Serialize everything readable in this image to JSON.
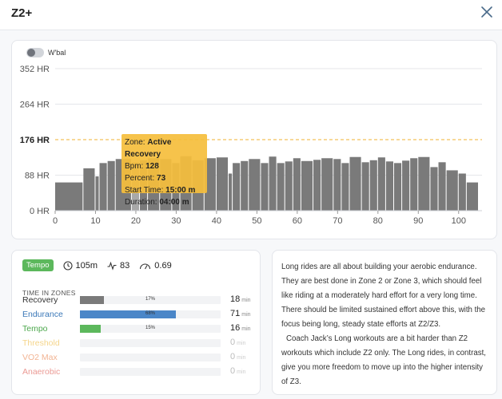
{
  "header": {
    "title": "Z2+"
  },
  "chart": {
    "wbal_label": "W'bal",
    "tooltip": {
      "zone_label": "Zone:",
      "zone_value": "Active Recovery",
      "bpm_label": "Bpm:",
      "bpm_value": "128",
      "percent_label": "Percent:",
      "percent_value": "73",
      "start_label": "Start Time:",
      "start_value": "15:00 m",
      "duration_label": "Duration:",
      "duration_value": "04:00 m"
    }
  },
  "chart_data": {
    "type": "bar",
    "y_ticks": [
      "352 HR",
      "264 HR",
      "176 HR",
      "88 HR",
      "0 HR"
    ],
    "y_tick_values": [
      352,
      264,
      176,
      88,
      0
    ],
    "highlight_tick": "176 HR",
    "ylim": [
      0,
      352
    ],
    "threshold": 176,
    "x_ticks": [
      "0",
      "10",
      "20",
      "30",
      "40",
      "50",
      "60",
      "70",
      "80",
      "90",
      "100"
    ],
    "x_tick_values": [
      0,
      10,
      20,
      30,
      40,
      50,
      60,
      70,
      80,
      90,
      100
    ],
    "xlim": [
      0,
      105
    ],
    "highlight_index": 6,
    "segments": [
      {
        "start": 0,
        "end": 7,
        "value": 70
      },
      {
        "start": 7,
        "end": 10,
        "value": 105
      },
      {
        "start": 10,
        "end": 11,
        "value": 85
      },
      {
        "start": 11,
        "end": 13,
        "value": 118
      },
      {
        "start": 13,
        "end": 15,
        "value": 123
      },
      {
        "start": 15,
        "end": 19,
        "value": 128
      },
      {
        "start": 19,
        "end": 21,
        "value": 120
      },
      {
        "start": 21,
        "end": 23,
        "value": 125
      },
      {
        "start": 23,
        "end": 26,
        "value": 130
      },
      {
        "start": 26,
        "end": 29,
        "value": 128
      },
      {
        "start": 29,
        "end": 31,
        "value": 118
      },
      {
        "start": 31,
        "end": 34,
        "value": 135
      },
      {
        "start": 34,
        "end": 37,
        "value": 125
      },
      {
        "start": 37,
        "end": 40,
        "value": 130
      },
      {
        "start": 40,
        "end": 43,
        "value": 132
      },
      {
        "start": 43,
        "end": 44,
        "value": 92
      },
      {
        "start": 44,
        "end": 46,
        "value": 118
      },
      {
        "start": 46,
        "end": 48,
        "value": 123
      },
      {
        "start": 48,
        "end": 51,
        "value": 128
      },
      {
        "start": 51,
        "end": 53,
        "value": 118
      },
      {
        "start": 53,
        "end": 55,
        "value": 134
      },
      {
        "start": 55,
        "end": 57,
        "value": 118
      },
      {
        "start": 57,
        "end": 59,
        "value": 122
      },
      {
        "start": 59,
        "end": 61,
        "value": 130
      },
      {
        "start": 61,
        "end": 64,
        "value": 123
      },
      {
        "start": 64,
        "end": 66,
        "value": 126
      },
      {
        "start": 66,
        "end": 69,
        "value": 130
      },
      {
        "start": 69,
        "end": 71,
        "value": 128
      },
      {
        "start": 71,
        "end": 73,
        "value": 118
      },
      {
        "start": 73,
        "end": 76,
        "value": 133
      },
      {
        "start": 76,
        "end": 78,
        "value": 120
      },
      {
        "start": 78,
        "end": 80,
        "value": 125
      },
      {
        "start": 80,
        "end": 82,
        "value": 132
      },
      {
        "start": 82,
        "end": 84,
        "value": 122
      },
      {
        "start": 84,
        "end": 86,
        "value": 118
      },
      {
        "start": 86,
        "end": 88,
        "value": 124
      },
      {
        "start": 88,
        "end": 90,
        "value": 130
      },
      {
        "start": 90,
        "end": 93,
        "value": 133
      },
      {
        "start": 93,
        "end": 95,
        "value": 108
      },
      {
        "start": 95,
        "end": 97,
        "value": 120
      },
      {
        "start": 97,
        "end": 100,
        "value": 100
      },
      {
        "start": 100,
        "end": 102,
        "value": 92
      },
      {
        "start": 102,
        "end": 105,
        "value": 70
      }
    ]
  },
  "stats": {
    "badge": "Tempo",
    "duration": "105m",
    "tss": "83",
    "intensity": "0.69",
    "time_in_zones_label": "TIME IN ZONES",
    "unit": "min",
    "zones": [
      {
        "name": "Recovery",
        "pct": 17,
        "pct_label": "17%",
        "minutes": "18",
        "color": "#7a7a7a",
        "name_color": "#333333"
      },
      {
        "name": "Endurance",
        "pct": 68,
        "pct_label": "68%",
        "minutes": "71",
        "color": "#4a86c8",
        "name_color": "#3b78b8"
      },
      {
        "name": "Tempo",
        "pct": 15,
        "pct_label": "15%",
        "minutes": "16",
        "color": "#5cb85c",
        "name_color": "#4da84d"
      },
      {
        "name": "Threshold",
        "pct": 0,
        "pct_label": "",
        "minutes": "0",
        "color": "#f5c24a",
        "name_color": "#f5d58a"
      },
      {
        "name": "VO2 Max",
        "pct": 0,
        "pct_label": "",
        "minutes": "0",
        "color": "#f0a070",
        "name_color": "#f2b493"
      },
      {
        "name": "Anaerobic",
        "pct": 0,
        "pct_label": "",
        "minutes": "0",
        "color": "#e07070",
        "name_color": "#eb9a94"
      }
    ]
  },
  "description": {
    "p1": "Long rides are all about building your aerobic endurance. They are best done in Zone 2 or Zone 3, which should feel like riding at a moderately hard effort for a very long time. There should be limited sustained effort above this, with the focus being long, steady state efforts at Z2/Z3.",
    "p2": "Coach Jack’s Long workouts are a bit harder than Z2 workouts which include Z2 only. The Long rides, in contrast, give you more freedom to move up into the higher intensity of Z3."
  }
}
